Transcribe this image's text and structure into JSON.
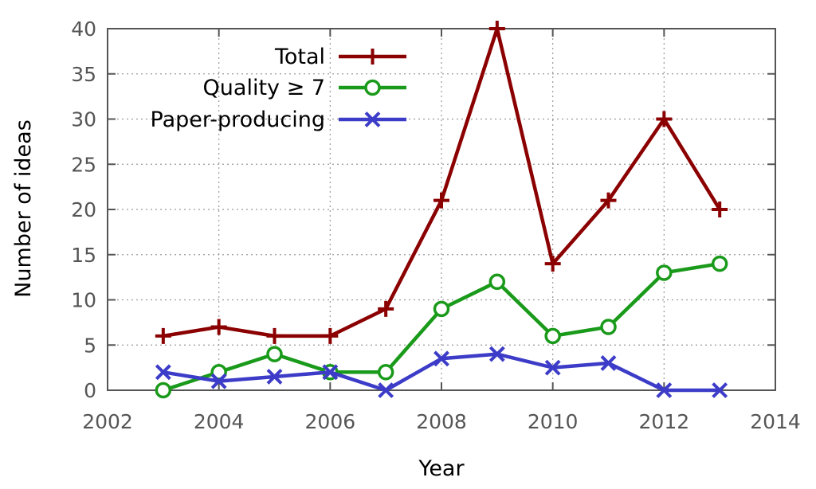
{
  "chart_data": {
    "type": "line",
    "xlabel": "Year",
    "ylabel": "Number of ideas",
    "xlim": [
      2002,
      2014
    ],
    "ylim": [
      0,
      40
    ],
    "x_ticks": [
      2002,
      2004,
      2006,
      2008,
      2010,
      2012,
      2014
    ],
    "y_ticks": [
      0,
      5,
      10,
      15,
      20,
      25,
      30,
      35,
      40
    ],
    "grid": true,
    "legend_position": "top-left",
    "x": [
      2003,
      2004,
      2005,
      2006,
      2007,
      2008,
      2009,
      2010,
      2011,
      2012,
      2013
    ],
    "series": [
      {
        "name": "Total",
        "color": "#8b0000",
        "marker": "plus",
        "values": [
          6,
          7,
          6,
          6,
          9,
          21,
          40,
          14,
          21,
          30,
          20
        ]
      },
      {
        "name": "Quality ≥ 7",
        "color": "#1a9a1a",
        "marker": "circle",
        "values": [
          0,
          2,
          4,
          2,
          2,
          9,
          12,
          6,
          7,
          13,
          14
        ]
      },
      {
        "name": "Paper-producing",
        "color": "#3c3cc8",
        "marker": "x",
        "values": [
          2,
          1,
          1.5,
          2,
          0,
          3.5,
          4,
          2.5,
          3,
          0,
          0
        ]
      }
    ]
  }
}
